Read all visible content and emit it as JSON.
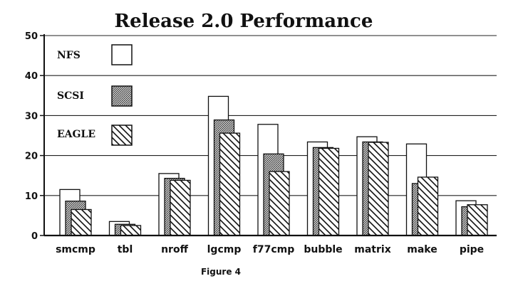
{
  "chart_data": {
    "type": "bar",
    "title": "Release 2.0 Performance",
    "caption": "Figure 4",
    "categories": [
      "smcmp",
      "tbl",
      "nroff",
      "lgcmp",
      "f77cmp",
      "bubble",
      "matrix",
      "make",
      "pipe"
    ],
    "series": [
      {
        "name": "NFS",
        "values": [
          11.5,
          3.5,
          15.5,
          34.8,
          27.8,
          23.4,
          24.7,
          22.9,
          8.7
        ]
      },
      {
        "name": "SCSI",
        "values": [
          8.6,
          2.8,
          14.3,
          28.9,
          20.4,
          22.0,
          23.4,
          13.0,
          7.2
        ]
      },
      {
        "name": "EAGLE",
        "values": [
          6.5,
          2.5,
          13.8,
          25.6,
          16.0,
          21.8,
          23.3,
          14.6,
          7.7
        ]
      }
    ],
    "ylim": [
      0,
      50
    ],
    "yticks": [
      "0",
      "10",
      "20",
      "30",
      "40",
      "50"
    ],
    "grid": true,
    "legend_position": "top-left",
    "colors": {
      "NFS": "#ffffff",
      "SCSI": "#7a7a7a",
      "EAGLE": "hatched"
    }
  }
}
